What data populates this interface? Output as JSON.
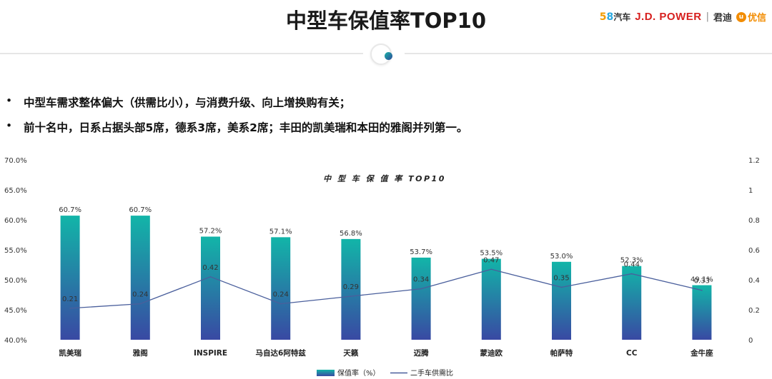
{
  "page": {
    "title": "中型车保值率TOP10",
    "logos": {
      "l58_5": "5",
      "l58_8": "8",
      "l58_car": "汽车",
      "jdpower": "J.D. POWER",
      "sep": "|",
      "jundi": "君迪",
      "youxin_mark": "u",
      "youxin": "优信"
    },
    "bullet_marker": "•",
    "bullets": [
      "中型车需求整体偏大（供需比小），与消费升级、向上增换购有关；",
      "前十名中，日系占据头部5席，德系3席，美系2席；丰田的凯美瑞和本田的雅阁并列第一。"
    ]
  },
  "colors": {
    "bar_top": "#12b5a8",
    "bar_bottom": "#3949a3",
    "line": "#4a5f9c"
  },
  "chart_data": {
    "type": "bar",
    "title": "中 型 车 保 值 率 TOP10",
    "categories": [
      "凯美瑞",
      "雅阁",
      "INSPIRE",
      "马自达6阿特兹",
      "天籁",
      "迈腾",
      "蒙迪欧",
      "帕萨特",
      "CC",
      "金牛座"
    ],
    "series": [
      {
        "name": "保值率（%）",
        "type": "bar",
        "axis": "left",
        "values": [
          60.7,
          60.7,
          57.2,
          57.1,
          56.8,
          53.7,
          53.5,
          53.0,
          52.3,
          49.1
        ],
        "labels": [
          "60.7%",
          "60.7%",
          "57.2%",
          "57.1%",
          "56.8%",
          "53.7%",
          "53.5%",
          "53.0%",
          "52.3%",
          "49.1%"
        ]
      },
      {
        "name": "二手车供需比",
        "type": "line",
        "axis": "right",
        "values": [
          0.21,
          0.24,
          0.42,
          0.24,
          0.29,
          0.34,
          0.47,
          0.35,
          0.44,
          0.33
        ],
        "labels": [
          "0.21",
          "0.24",
          "0.42",
          "0.24",
          "0.29",
          "0.34",
          "0.47",
          "0.35",
          "0.44",
          "0.33"
        ]
      }
    ],
    "y_left": {
      "min": 40,
      "max": 70,
      "ticks": [
        "40.0%",
        "45.0%",
        "50.0%",
        "55.0%",
        "60.0%",
        "65.0%",
        "70.0%"
      ]
    },
    "y_right": {
      "min": 0,
      "max": 1.2,
      "ticks": [
        "0",
        "0.2",
        "0.4",
        "0.6",
        "0.8",
        "1",
        "1.2"
      ]
    },
    "legend": [
      "保值率（%）",
      "二手车供需比"
    ],
    "legend_position": "bottom"
  }
}
